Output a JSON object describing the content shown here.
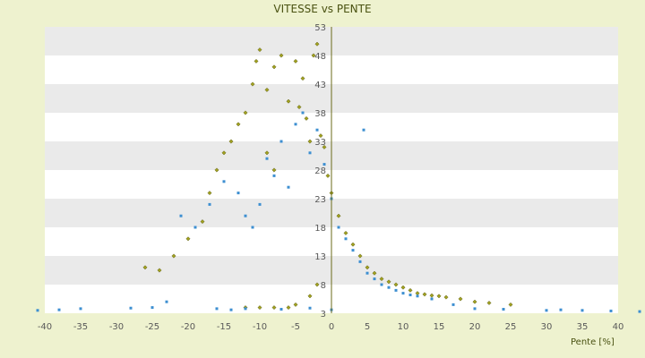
{
  "chart_data": {
    "type": "scatter",
    "title": "VITESSE vs PENTE",
    "xlabel": "Pente [%]",
    "ylabel": "",
    "xlim": [
      -40,
      40
    ],
    "ylim": [
      3,
      53
    ],
    "x_ticks": [
      -40,
      -35,
      -30,
      -25,
      -20,
      -15,
      -10,
      -5,
      0,
      5,
      10,
      15,
      20,
      25,
      30,
      35,
      40
    ],
    "y_ticks": [
      3,
      8,
      13,
      18,
      23,
      28,
      33,
      38,
      43,
      48,
      53
    ],
    "grid": true,
    "legend": "none",
    "colors": {
      "series_1": "#a0a020",
      "series_2": "#3d8fd1",
      "band_light": "#ffffff",
      "band_dark": "#eaeaea",
      "axis_line": "#6b6b1a"
    },
    "series": [
      {
        "points": [
          [
            -26,
            11
          ],
          [
            -24,
            10.5
          ],
          [
            -22,
            13
          ],
          [
            -20,
            16
          ],
          [
            -18,
            19
          ],
          [
            -17,
            24
          ],
          [
            -16,
            28
          ],
          [
            -15,
            31
          ],
          [
            -14,
            33
          ],
          [
            -13,
            36
          ],
          [
            -12,
            38
          ],
          [
            -11,
            43
          ],
          [
            -10.5,
            47
          ],
          [
            -10,
            49
          ],
          [
            -9,
            42
          ],
          [
            -8,
            46
          ],
          [
            -7,
            48
          ],
          [
            -6,
            40
          ],
          [
            -5,
            47
          ],
          [
            -4.5,
            39
          ],
          [
            -4,
            44
          ],
          [
            -3.5,
            37
          ],
          [
            -3,
            33
          ],
          [
            -2.5,
            48
          ],
          [
            -2,
            50
          ],
          [
            -1.5,
            34
          ],
          [
            -1,
            32
          ],
          [
            -0.5,
            27
          ],
          [
            0,
            24
          ],
          [
            1,
            20
          ],
          [
            2,
            17
          ],
          [
            3,
            15
          ],
          [
            4,
            13
          ],
          [
            5,
            11
          ],
          [
            6,
            10
          ],
          [
            7,
            9
          ],
          [
            8,
            8.5
          ],
          [
            9,
            8
          ],
          [
            10,
            7.5
          ],
          [
            11,
            7
          ],
          [
            12,
            6.5
          ],
          [
            13,
            6.3
          ],
          [
            14,
            6.1
          ],
          [
            15,
            6
          ],
          [
            16,
            5.8
          ],
          [
            18,
            5.5
          ],
          [
            20,
            5
          ],
          [
            22,
            4.8
          ],
          [
            25,
            4.5
          ],
          [
            -12,
            4
          ],
          [
            -10,
            4
          ],
          [
            -8,
            4
          ],
          [
            -6,
            4
          ],
          [
            -5,
            4.5
          ],
          [
            -3,
            6
          ],
          [
            -2,
            8
          ],
          [
            -8,
            28
          ],
          [
            -9,
            31
          ]
        ]
      },
      {
        "points": [
          [
            -41,
            3.5
          ],
          [
            -38,
            3.6
          ],
          [
            -35,
            3.8
          ],
          [
            -28,
            3.9
          ],
          [
            -25,
            4
          ],
          [
            -23,
            5
          ],
          [
            -21,
            20
          ],
          [
            -19,
            18
          ],
          [
            -17,
            22
          ],
          [
            -15,
            26
          ],
          [
            -13,
            24
          ],
          [
            -12,
            20
          ],
          [
            -11,
            18
          ],
          [
            -10,
            22
          ],
          [
            -9,
            30
          ],
          [
            -8,
            27
          ],
          [
            -7,
            33
          ],
          [
            -6,
            25
          ],
          [
            -5,
            36
          ],
          [
            -4,
            38
          ],
          [
            -3,
            31
          ],
          [
            -2,
            35
          ],
          [
            -1,
            29
          ],
          [
            0,
            23
          ],
          [
            1,
            18
          ],
          [
            2,
            16
          ],
          [
            3,
            14
          ],
          [
            4,
            12
          ],
          [
            4.5,
            35
          ],
          [
            5,
            10
          ],
          [
            6,
            9
          ],
          [
            7,
            8
          ],
          [
            8,
            7.5
          ],
          [
            9,
            7
          ],
          [
            10,
            6.5
          ],
          [
            11,
            6.2
          ],
          [
            12,
            6
          ],
          [
            14,
            5.5
          ],
          [
            17,
            4.5
          ],
          [
            20,
            3.8
          ],
          [
            24,
            3.7
          ],
          [
            30,
            3.5
          ],
          [
            32,
            3.6
          ],
          [
            35,
            3.5
          ],
          [
            39,
            3.4
          ],
          [
            43,
            3.3
          ],
          [
            -12,
            3.8
          ],
          [
            -14,
            3.6
          ],
          [
            -16,
            3.8
          ],
          [
            -7,
            3.7
          ],
          [
            -3,
            3.9
          ],
          [
            0,
            3.6
          ]
        ]
      }
    ]
  }
}
